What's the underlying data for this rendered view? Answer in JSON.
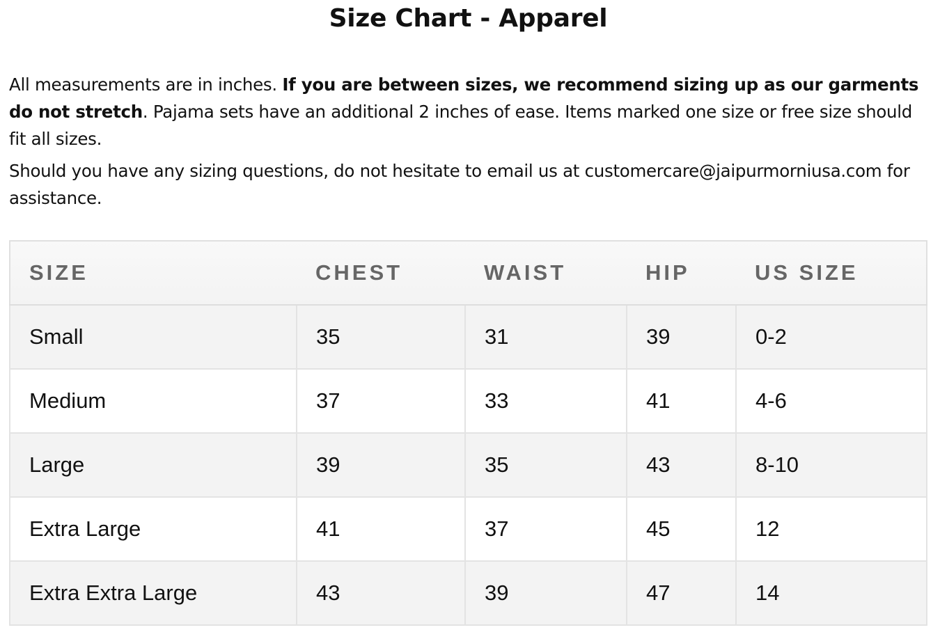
{
  "title": "Size Chart - Apparel",
  "intro": {
    "p1_start": "All measurements are in inches. ",
    "p1_bold": "If you are between sizes, we recommend sizing up as our garments do not stretch",
    "p1_end": ". Pajama sets have an additional 2 inches of ease. Items marked one size or free size should fit all sizes.",
    "p2": "Should you have any sizing questions, do not hesitate to email us at customercare@jaipurmorniusa.com for assistance."
  },
  "table": {
    "headers": [
      "SIZE",
      "CHEST",
      "WAIST",
      "HIP",
      "US SIZE"
    ],
    "rows": [
      [
        "Small",
        "35",
        "31",
        "39",
        "0-2"
      ],
      [
        "Medium",
        "37",
        "33",
        "41",
        "4-6"
      ],
      [
        "Large",
        "39",
        "35",
        "43",
        "8-10"
      ],
      [
        "Extra Large",
        "41",
        "37",
        "45",
        "12"
      ],
      [
        "Extra Extra Large",
        "43",
        "39",
        "47",
        "14"
      ]
    ]
  }
}
